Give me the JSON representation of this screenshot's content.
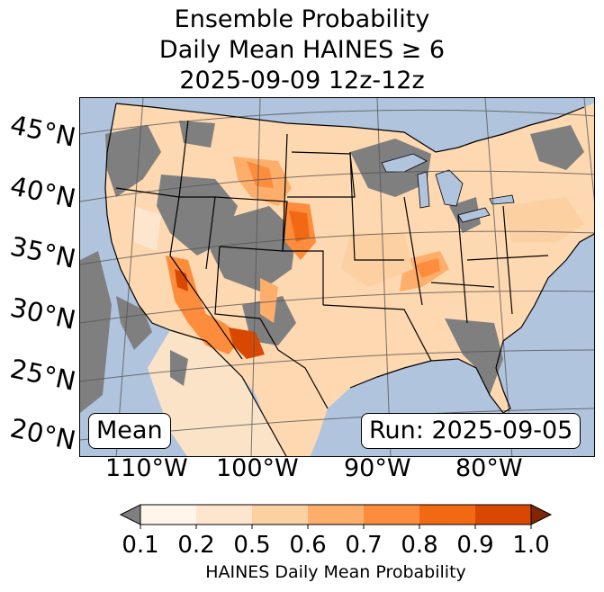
{
  "title": {
    "line1": "Ensemble Probability",
    "line2": "Daily Mean HAINES ≥ 6",
    "line3": "2025-09-09 12z-12z"
  },
  "map": {
    "lat_labels": [
      "45°N",
      "40°N",
      "35°N",
      "30°N",
      "25°N",
      "20°N"
    ],
    "lon_labels": [
      "110°W",
      "100°W",
      "90°W",
      "80°W"
    ],
    "stat_label": "Mean",
    "run_label": "Run: 2025-09-05",
    "colors": {
      "ocean": "#b0c4de",
      "no_data_land": "#7f7f7f",
      "border": "#000000",
      "graticule": "#555555"
    }
  },
  "colorbar": {
    "title": "HAINES Daily Mean Probability",
    "tick_labels": [
      "0.1",
      "0.2",
      "0.5",
      "0.6",
      "0.7",
      "0.8",
      "0.9",
      "1.0"
    ],
    "under_color": "#7f7f7f",
    "over_color": "#7f2704",
    "bin_colors": [
      "#fff5eb",
      "#fee6ce",
      "#fdd0a2",
      "#fdae6b",
      "#fd8d3c",
      "#f16913",
      "#d94801"
    ]
  }
}
